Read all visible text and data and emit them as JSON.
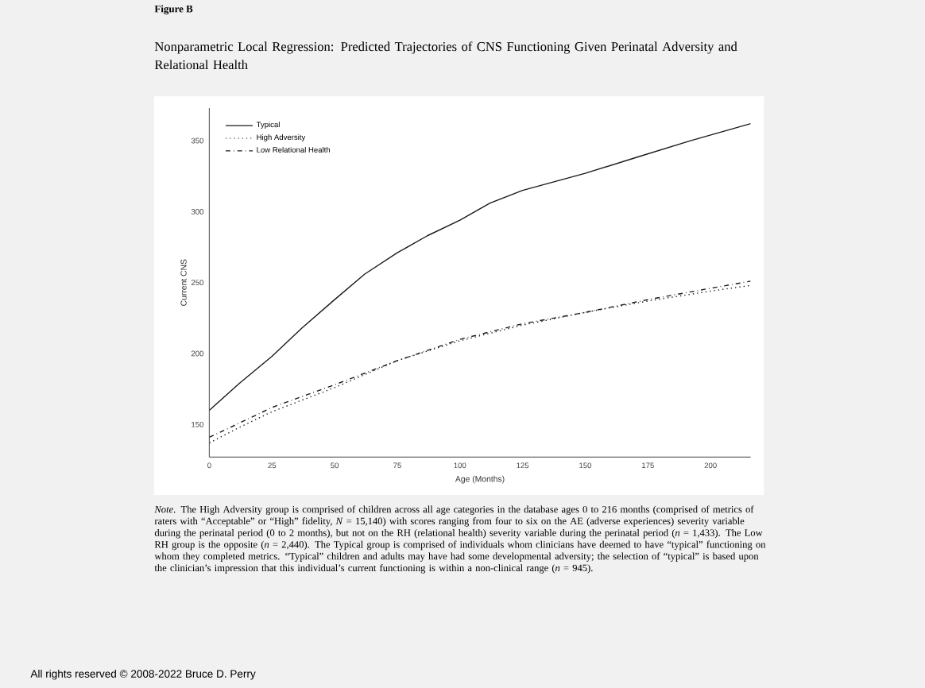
{
  "chart_data": {
    "type": "line",
    "title": "Figure B",
    "subtitle": "Nonparametric Local Regression: Predicted Trajectories of CNS Functioning Given Perinatal Adversity and Relational Health",
    "xlabel": "Age (Months)",
    "ylabel": "Current CNS",
    "xlim": [
      0,
      216
    ],
    "ylim": [
      127,
      373
    ],
    "xticks": [
      0,
      25,
      50,
      75,
      100,
      125,
      150,
      175,
      200
    ],
    "yticks": [
      150,
      200,
      250,
      300,
      350
    ],
    "grid": false,
    "legend": "top left",
    "marker": "none",
    "series": [
      {
        "name": "Typical",
        "color": "#1a1a1a",
        "line_style": "solid",
        "x": [
          0,
          12,
          25,
          37,
          50,
          62,
          75,
          87,
          100,
          112,
          125,
          150,
          170,
          192,
          216
        ],
        "values": [
          160,
          179,
          198,
          218,
          238,
          256,
          271,
          283,
          294,
          306,
          315,
          327,
          338,
          350,
          362
        ]
      },
      {
        "name": "High Adversity",
        "color": "#1a1a1a",
        "line_style": "dotted",
        "x": [
          0,
          12,
          25,
          50,
          75,
          100,
          125,
          150,
          175,
          200,
          216
        ],
        "values": [
          137,
          148,
          159,
          176,
          195,
          209,
          220,
          229,
          237,
          244,
          248
        ]
      },
      {
        "name": "Low Relational Health",
        "color": "#1a1a1a",
        "line_style": "dashdot",
        "x": [
          0,
          12,
          25,
          50,
          75,
          100,
          125,
          150,
          175,
          200,
          216
        ],
        "values": [
          141,
          151,
          162,
          178,
          195,
          210,
          221,
          229,
          238,
          246,
          251
        ]
      }
    ],
    "annotations": [
      "*Note*. The High Adversity group is comprised of children across all age categories in the database ages 0 to 216 months (comprised of metrics of raters with “Acceptable” or “High” fidelity, *N* = 15,140) with scores ranging from four to six on the AE (adverse experiences) severity variable during the perinatal period (0 to 2 months), but not on the RH (relational health) severity variable during the perinatal period (*n* = 1,433). The Low RH group is the opposite (*n* = 2,440). The Typical group is comprised of individuals whom clinicians have deemed to have “typical” functioning on whom they completed metrics. “Typical” children and adults may have had some developmental adversity; the selection of “typical” is based upon the clinician’s impression that this individual’s current functioning is within a non-clinical range (*n* = 945).",
      "All rights reserved © 2008-2022 Bruce D. Perry"
    ]
  }
}
